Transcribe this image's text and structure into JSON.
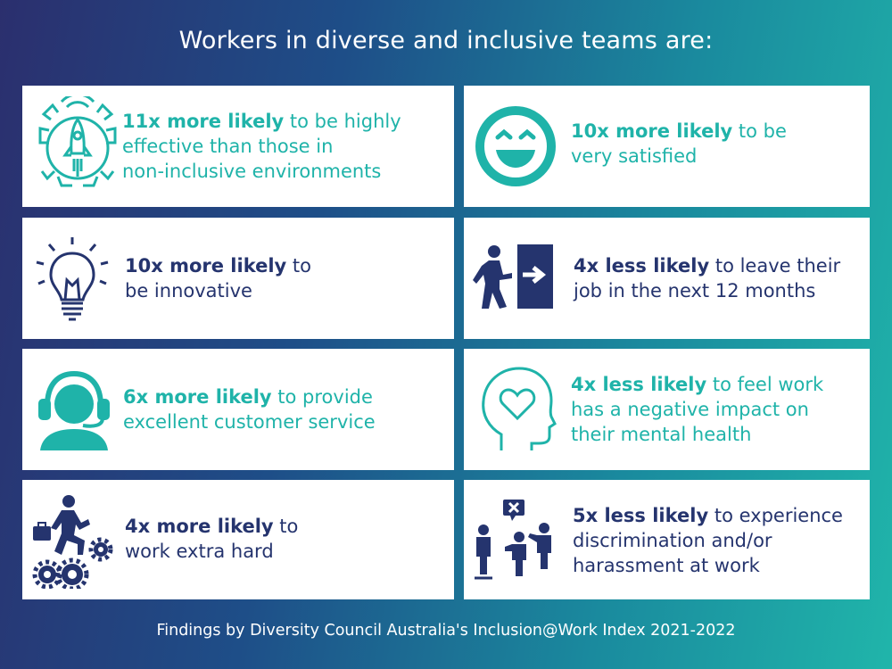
{
  "title": "Workers in diverse and inclusive teams are:",
  "footer": "Findings by Diversity Council Australia's Inclusion@Work Index 2021-2022",
  "colors": {
    "teal": "#1fb3a9",
    "navy": "#25346e"
  },
  "cards": [
    {
      "icon": "rocket-gear-icon",
      "bold": "11x more likely",
      "line1_rest": " to be highly",
      "line2": "effective than those in",
      "line3": "non-inclusive environments"
    },
    {
      "icon": "smiley-icon",
      "bold": "10x more likely",
      "line1_rest": " to be",
      "line2": "very satisfied"
    },
    {
      "icon": "lightbulb-icon",
      "bold": "10x more likely",
      "line1_rest": " to",
      "line2": "be innovative"
    },
    {
      "icon": "exit-person-icon",
      "bold": "4x less likely",
      "line1_rest": " to leave their",
      "line2": "job in the next 12 months"
    },
    {
      "icon": "headset-person-icon",
      "bold": "6x more likely",
      "line1_rest": " to provide",
      "line2": "excellent customer service"
    },
    {
      "icon": "head-heart-icon",
      "bold": "4x less likely",
      "line1_rest": " to feel work",
      "line2": "has a negative impact on",
      "line3": "their mental health"
    },
    {
      "icon": "worker-gears-icon",
      "bold": "4x more likely",
      "line1_rest": " to",
      "line2": "work extra hard"
    },
    {
      "icon": "discrimination-icon",
      "bold": "5x less likely",
      "line1_rest": " to experience",
      "line2": "discrimination and/or",
      "line3": "harassment at work"
    }
  ]
}
